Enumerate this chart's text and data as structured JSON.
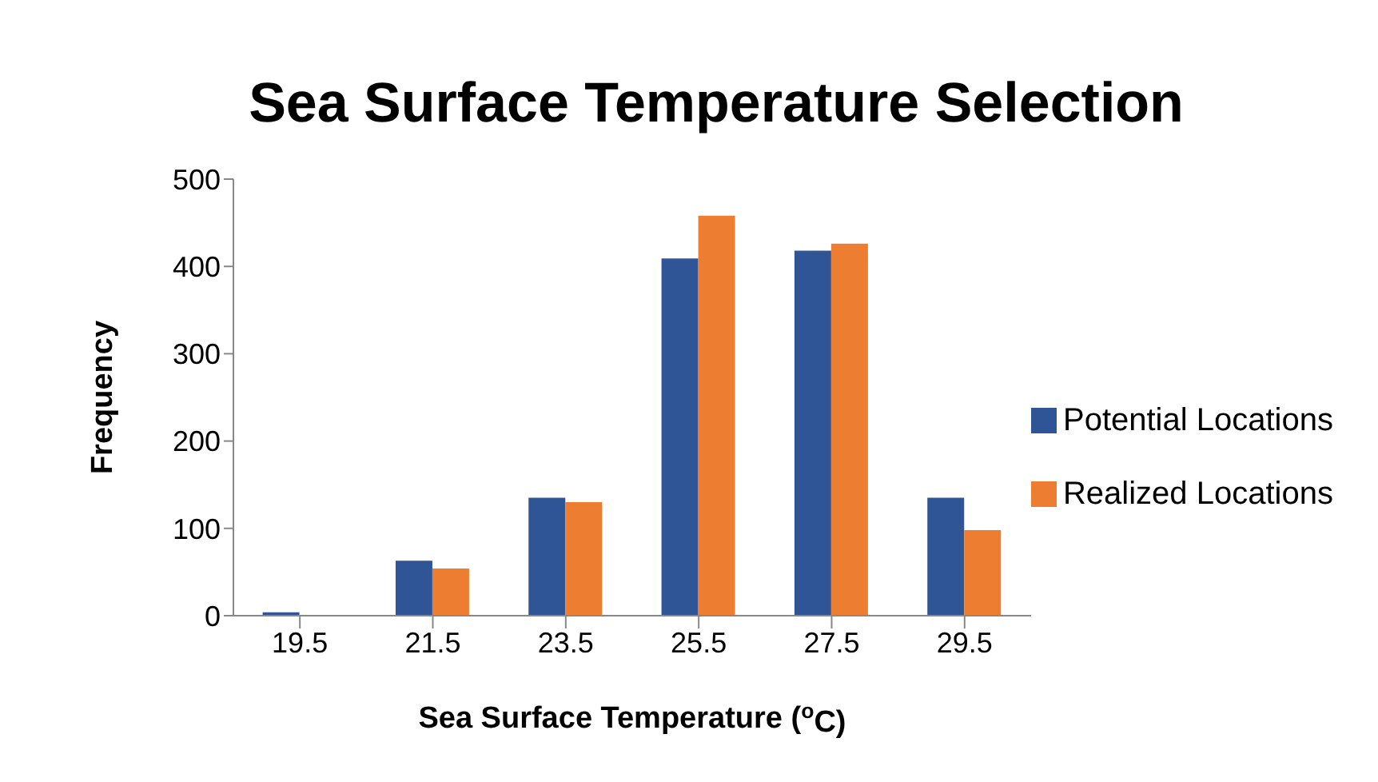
{
  "chart_data": {
    "type": "bar",
    "title": "Sea Surface Temperature Selection",
    "xlabel": "Sea Surface Temperature ($^{o}$C)",
    "ylabel": "Frequency",
    "categories": [
      "19.5",
      "21.5",
      "23.5",
      "25.5",
      "27.5",
      "29.5"
    ],
    "series": [
      {
        "name": "Potential Locations",
        "color": "#2f5597",
        "values": [
          4,
          63,
          135,
          409,
          418,
          135
        ]
      },
      {
        "name": "Realized Locations",
        "color": "#ed7d31",
        "values": [
          0,
          54,
          130,
          458,
          426,
          98
        ]
      }
    ],
    "ylim": [
      0,
      500
    ],
    "yticks": [
      0,
      100,
      200,
      300,
      400,
      500
    ],
    "grid": false,
    "legend": "right"
  }
}
